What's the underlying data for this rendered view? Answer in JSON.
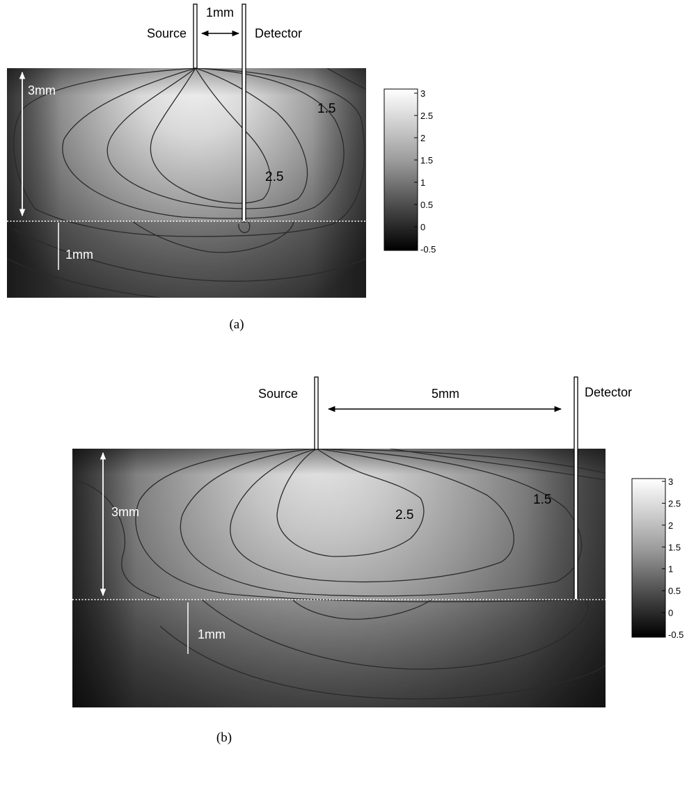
{
  "panel_a": {
    "caption": "(a)",
    "source_label": "Source",
    "detector_label": "Detector",
    "separation_label": "1mm",
    "depth_label": "3mm",
    "layer_label": "1mm",
    "contour_labels": [
      "1.5",
      "2.5"
    ],
    "colorbar_ticks": [
      "3",
      "2.5",
      "2",
      "1.5",
      "1",
      "0.5",
      "0",
      "-0.5"
    ]
  },
  "panel_b": {
    "caption": "(b)",
    "source_label": "Source",
    "detector_label": "Detector",
    "separation_label": "5mm",
    "depth_label": "3mm",
    "layer_label": "1mm",
    "contour_labels": [
      "2.5",
      "1.5"
    ],
    "colorbar_ticks": [
      "3",
      "2.5",
      "2",
      "1.5",
      "1",
      "0.5",
      "0",
      "-0.5"
    ]
  },
  "colors": {
    "map_dark": "#000000",
    "map_light": "#ffffff",
    "contour": "#2a2a2a",
    "marker": "#ffffff"
  }
}
